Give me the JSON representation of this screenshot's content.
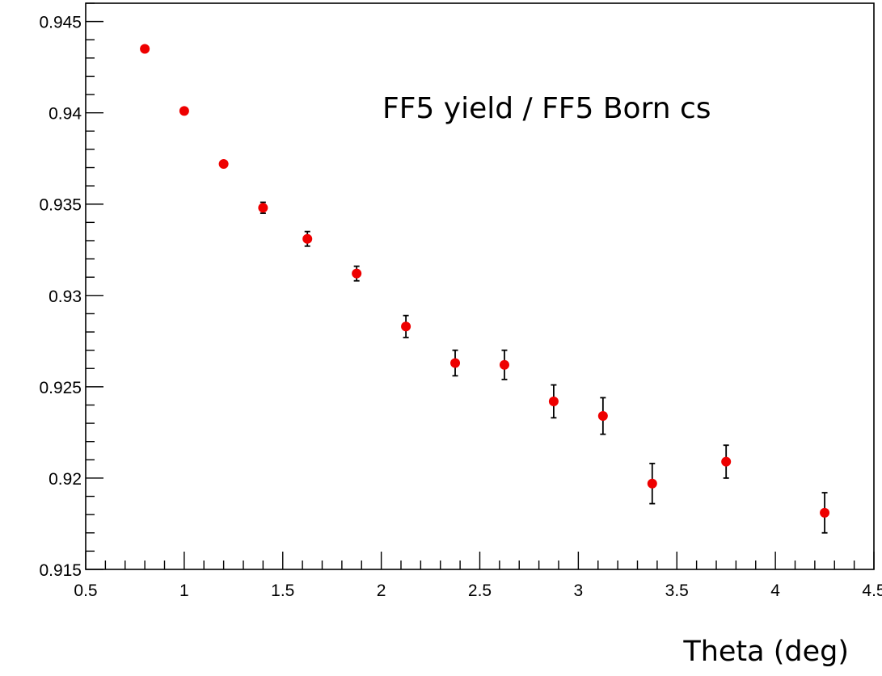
{
  "chart_data": {
    "type": "scatter",
    "title": "",
    "annotation": "FF5 yield / FF5 Born cs",
    "xlabel": "Theta (deg)",
    "ylabel": "",
    "xlim": [
      0.5,
      4.5
    ],
    "ylim": [
      0.915,
      0.946
    ],
    "x_ticks": [
      0.5,
      1,
      1.5,
      2,
      2.5,
      3,
      3.5,
      4,
      4.5
    ],
    "x_tick_labels": [
      "0.5",
      "1",
      "1.5",
      "2",
      "2.5",
      "3",
      "3.5",
      "4",
      "4.5"
    ],
    "y_ticks": [
      0.915,
      0.92,
      0.925,
      0.93,
      0.935,
      0.94,
      0.945
    ],
    "y_tick_labels": [
      "0.915",
      "0.92",
      "0.925",
      "0.93",
      "0.935",
      "0.94",
      "0.945"
    ],
    "grid": false,
    "marker_color": "#ee0000",
    "series": [
      {
        "points": [
          {
            "x": 0.8,
            "y": 0.9435,
            "err": 0.0001
          },
          {
            "x": 1.0,
            "y": 0.9401,
            "err": 0.0001
          },
          {
            "x": 1.2,
            "y": 0.9372,
            "err": 0.0001
          },
          {
            "x": 1.4,
            "y": 0.9348,
            "err": 0.0003
          },
          {
            "x": 1.625,
            "y": 0.9331,
            "err": 0.0004
          },
          {
            "x": 1.875,
            "y": 0.9312,
            "err": 0.0004
          },
          {
            "x": 2.125,
            "y": 0.9283,
            "err": 0.0006
          },
          {
            "x": 2.375,
            "y": 0.9263,
            "err": 0.0007
          },
          {
            "x": 2.625,
            "y": 0.9262,
            "err": 0.0008
          },
          {
            "x": 2.875,
            "y": 0.9242,
            "err": 0.0009
          },
          {
            "x": 3.125,
            "y": 0.9234,
            "err": 0.001
          },
          {
            "x": 3.375,
            "y": 0.9197,
            "err": 0.0011
          },
          {
            "x": 3.75,
            "y": 0.9209,
            "err": 0.0009
          },
          {
            "x": 4.25,
            "y": 0.9181,
            "err": 0.0011
          }
        ]
      }
    ]
  }
}
